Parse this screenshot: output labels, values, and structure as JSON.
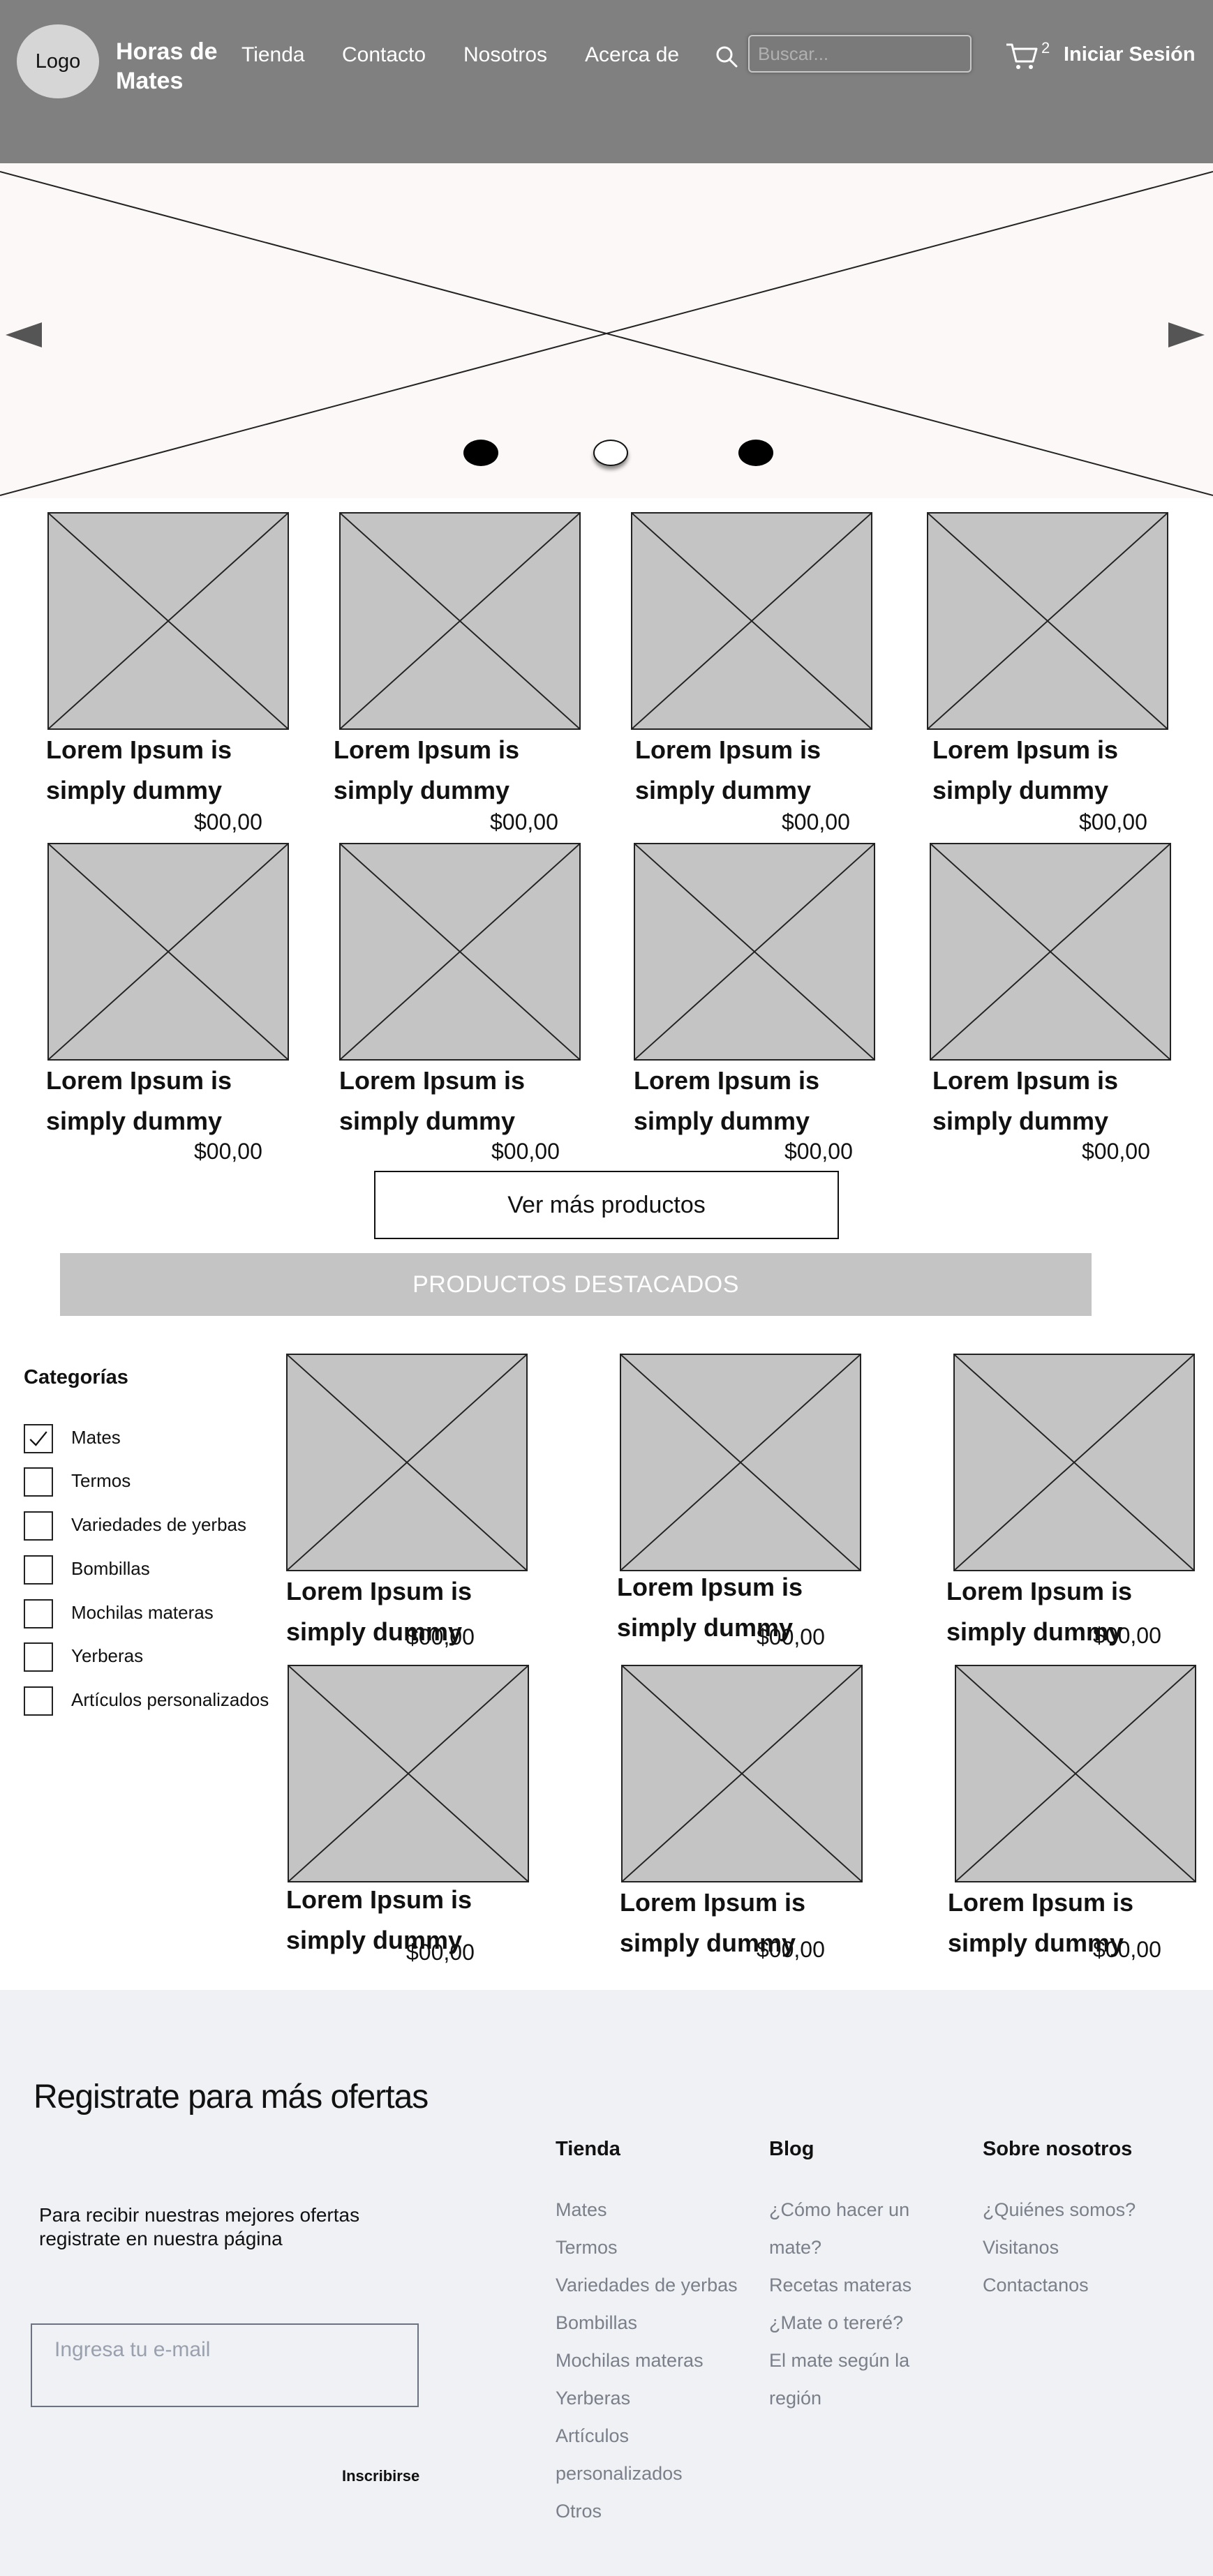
{
  "header": {
    "logo": "Logo",
    "brand": "Horas de Mates",
    "nav": [
      "Tienda",
      "Contacto",
      "Nosotros",
      "Acerca de"
    ],
    "search_placeholder": "Buscar...",
    "cart_count": "2",
    "login_label": "Iniciar Sesión"
  },
  "hero": {
    "slides": 3,
    "active_slide": 2
  },
  "products": [
    {
      "title": "Lorem Ipsum is simply dummy",
      "price": "$00,00"
    },
    {
      "title": "Lorem Ipsum is simply dummy",
      "price": "$00,00"
    },
    {
      "title": "Lorem Ipsum is simply dummy",
      "price": "$00,00"
    },
    {
      "title": "Lorem Ipsum is simply dummy",
      "price": "$00,00"
    },
    {
      "title": "Lorem Ipsum is simply dummy",
      "price": "$00,00"
    },
    {
      "title": "Lorem Ipsum is simply dummy",
      "price": "$00,00"
    },
    {
      "title": "Lorem Ipsum is simply dummy",
      "price": "$00,00"
    },
    {
      "title": "Lorem Ipsum is simply dummy",
      "price": "$00,00"
    }
  ],
  "more_button": "Ver más productos",
  "featured": {
    "banner": "PRODUCTOS DESTACADOS",
    "categories_title": "Categorías",
    "categories": [
      {
        "label": "Mates",
        "checked": true
      },
      {
        "label": "Termos",
        "checked": false
      },
      {
        "label": "Variedades de yerbas",
        "checked": false
      },
      {
        "label": "Bombillas",
        "checked": false
      },
      {
        "label": "Mochilas materas",
        "checked": false
      },
      {
        "label": "Yerberas",
        "checked": false
      },
      {
        "label": "Artículos personalizados",
        "checked": false
      }
    ],
    "products": [
      {
        "title": "Lorem Ipsum is simply dummy",
        "price": "$00,00"
      },
      {
        "title": "Lorem Ipsum is simply dummy",
        "price": "$00,00"
      },
      {
        "title": "Lorem Ipsum is simply dummy",
        "price": "$00,00"
      },
      {
        "title": "Lorem Ipsum is simply dummy",
        "price": "$00,00"
      },
      {
        "title": "Lorem Ipsum is simply dummy",
        "price": "$00,00"
      },
      {
        "title": "Lorem Ipsum is simply dummy",
        "price": "$00,00"
      }
    ]
  },
  "footer": {
    "register_title": "Registrate para más ofertas",
    "register_desc": "Para recibir nuestras mejores ofertas registrate en nuestra página",
    "email_placeholder": "Ingresa tu e-mail",
    "subscribe_label": "Inscribirse",
    "columns": [
      {
        "title": "Tienda",
        "links": [
          "Mates",
          "Termos",
          "Variedades de yerbas",
          "Bombillas",
          "Mochilas materas",
          "Yerberas",
          "Artículos",
          "personalizados",
          "Otros"
        ]
      },
      {
        "title": "Blog",
        "links": [
          "¿Cómo hacer un",
          "mate?",
          "Recetas materas",
          "¿Mate o tereré?",
          "El mate según la",
          "región"
        ]
      },
      {
        "title": "Sobre nosotros",
        "links": [
          "¿Quiénes somos?",
          "Visitanos",
          "Contactanos"
        ]
      }
    ]
  },
  "colors": {
    "header_bg": "#808080",
    "hero_bg": "#fcf8f7",
    "placeholder_gray": "#c4c4c4",
    "footer_bg": "#eff1f5",
    "footer_link": "#7a7f89"
  }
}
